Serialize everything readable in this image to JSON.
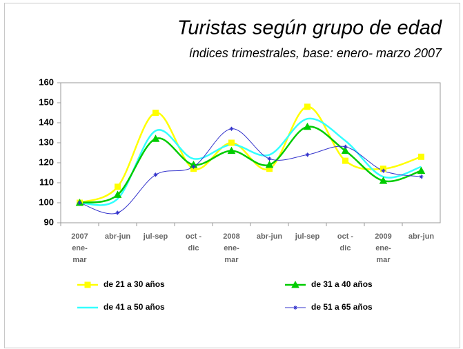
{
  "chart_data": {
    "type": "line",
    "title": "Turistas según grupo de edad",
    "subtitle": "índices trimestrales, base: enero- marzo 2007",
    "categories": [
      [
        "2007",
        "ene-",
        "mar"
      ],
      [
        "abr-jun"
      ],
      [
        "jul-sep"
      ],
      [
        "oct -",
        "dic"
      ],
      [
        "2008",
        "ene-",
        "mar"
      ],
      [
        "abr-jun"
      ],
      [
        "jul-sep"
      ],
      [
        "oct -",
        "dic"
      ],
      [
        "2009",
        "ene-",
        "mar"
      ],
      [
        "abr-jun"
      ]
    ],
    "series": [
      {
        "name": "de 21 a 30 años",
        "color": "#ffff00",
        "marker": "square",
        "values": [
          100,
          108,
          145,
          117,
          130,
          117,
          148,
          121,
          117,
          123
        ]
      },
      {
        "name": "de 31 a 40 años",
        "color": "#00cc00",
        "marker": "triangle",
        "values": [
          100,
          104,
          132,
          119,
          126,
          119,
          138,
          126,
          111,
          116
        ]
      },
      {
        "name": "de 41 a 50 años",
        "color": "#33ffff",
        "marker": "none",
        "values": [
          100,
          102,
          136,
          122,
          129,
          124,
          142,
          131,
          113,
          118
        ]
      },
      {
        "name": "de 51 a 65 años",
        "color": "#3333cc",
        "marker": "star",
        "values": [
          100,
          95,
          114,
          118,
          137,
          122,
          124,
          128,
          116,
          113
        ]
      }
    ],
    "ylim": [
      90,
      160
    ],
    "yticks": [
      90,
      100,
      110,
      120,
      130,
      140,
      150,
      160
    ],
    "grid": false
  }
}
